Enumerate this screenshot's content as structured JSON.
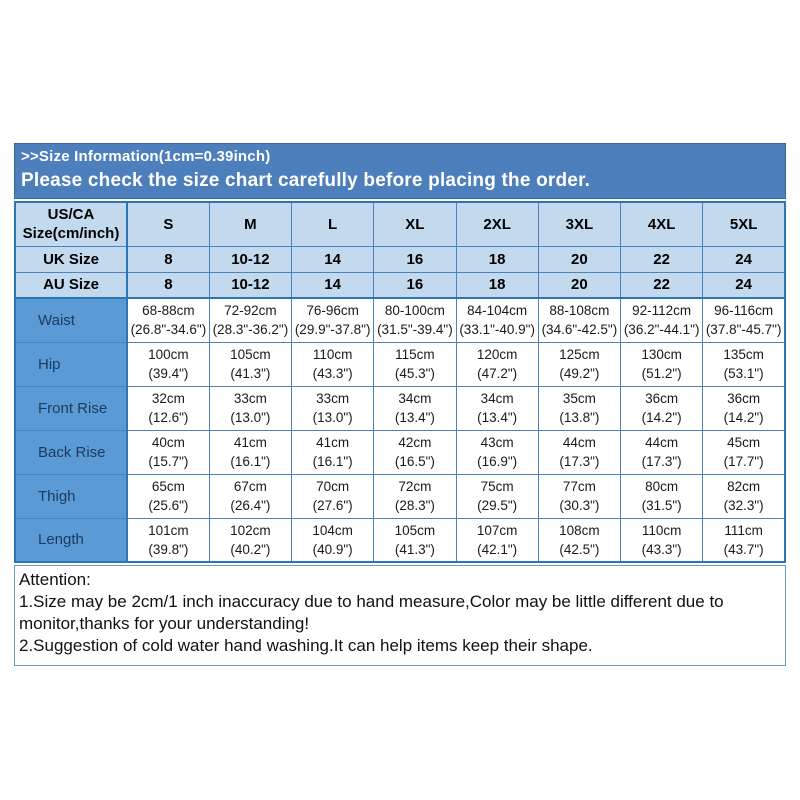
{
  "header": {
    "line1": ">>Size Information(1cm=0.39inch)",
    "line2": "Please check the size chart carefully before placing the order."
  },
  "size_table": {
    "corner_label": [
      "US/CA",
      "Size(cm/inch)"
    ],
    "sizes": [
      "S",
      "M",
      "L",
      "XL",
      "2XL",
      "3XL",
      "4XL",
      "5XL"
    ],
    "uk_row": {
      "label": "UK Size",
      "values": [
        "8",
        "10-12",
        "14",
        "16",
        "18",
        "20",
        "22",
        "24"
      ]
    },
    "au_row": {
      "label": "AU Size",
      "values": [
        "8",
        "10-12",
        "14",
        "16",
        "18",
        "20",
        "22",
        "24"
      ]
    },
    "measurements": [
      {
        "label": "Waist",
        "values": [
          [
            "68-88cm",
            "(26.8\"-34.6\")"
          ],
          [
            "72-92cm",
            "(28.3\"-36.2\")"
          ],
          [
            "76-96cm",
            "(29.9\"-37.8\")"
          ],
          [
            "80-100cm",
            "(31.5\"-39.4\")"
          ],
          [
            "84-104cm",
            "(33.1\"-40.9\")"
          ],
          [
            "88-108cm",
            "(34.6\"-42.5\")"
          ],
          [
            "92-112cm",
            "(36.2\"-44.1\")"
          ],
          [
            "96-116cm",
            "(37.8\"-45.7\")"
          ]
        ]
      },
      {
        "label": "Hip",
        "values": [
          [
            "100cm",
            "(39.4\")"
          ],
          [
            "105cm",
            "(41.3\")"
          ],
          [
            "110cm",
            "(43.3\")"
          ],
          [
            "115cm",
            "(45.3\")"
          ],
          [
            "120cm",
            "(47.2\")"
          ],
          [
            "125cm",
            "(49.2\")"
          ],
          [
            "130cm",
            "(51.2\")"
          ],
          [
            "135cm",
            "(53.1\")"
          ]
        ]
      },
      {
        "label": "Front Rise",
        "values": [
          [
            "32cm",
            "(12.6\")"
          ],
          [
            "33cm",
            "(13.0\")"
          ],
          [
            "33cm",
            "(13.0\")"
          ],
          [
            "34cm",
            "(13.4\")"
          ],
          [
            "34cm",
            "(13.4\")"
          ],
          [
            "35cm",
            "(13.8\")"
          ],
          [
            "36cm",
            "(14.2\")"
          ],
          [
            "36cm",
            "(14.2\")"
          ]
        ]
      },
      {
        "label": "Back Rise",
        "values": [
          [
            "40cm",
            "(15.7\")"
          ],
          [
            "41cm",
            "(16.1\")"
          ],
          [
            "41cm",
            "(16.1\")"
          ],
          [
            "42cm",
            "(16.5\")"
          ],
          [
            "43cm",
            "(16.9\")"
          ],
          [
            "44cm",
            "(17.3\")"
          ],
          [
            "44cm",
            "(17.3\")"
          ],
          [
            "45cm",
            "(17.7\")"
          ]
        ]
      },
      {
        "label": "Thigh",
        "values": [
          [
            "65cm",
            "(25.6\")"
          ],
          [
            "67cm",
            "(26.4\")"
          ],
          [
            "70cm",
            "(27.6\")"
          ],
          [
            "72cm",
            "(28.3\")"
          ],
          [
            "75cm",
            "(29.5\")"
          ],
          [
            "77cm",
            "(30.3\")"
          ],
          [
            "80cm",
            "(31.5\")"
          ],
          [
            "82cm",
            "(32.3\")"
          ]
        ]
      },
      {
        "label": "Length",
        "values": [
          [
            "101cm",
            "(39.8\")"
          ],
          [
            "102cm",
            "(40.2\")"
          ],
          [
            "104cm",
            "(40.9\")"
          ],
          [
            "105cm",
            "(41.3\")"
          ],
          [
            "107cm",
            "(42.1\")"
          ],
          [
            "108cm",
            "(42.5\")"
          ],
          [
            "110cm",
            "(43.3\")"
          ],
          [
            "111cm",
            "(43.7\")"
          ]
        ]
      }
    ]
  },
  "attention": {
    "title": "Attention:",
    "line1": "1.Size may be 2cm/1 inch inaccuracy due to hand measure,Color may be little different due to monitor,thanks for your understanding!",
    "line2": "2.Suggestion of cold water hand washing.It can help items keep their shape."
  },
  "colors": {
    "band_bg": "#4d7fbc",
    "band_text": "#ffffff",
    "header_cell_bg": "#c3d9ee",
    "label_cell_bg": "#5b9bd5",
    "border": "#4f81bd",
    "outer_border": "#2e75b6"
  }
}
